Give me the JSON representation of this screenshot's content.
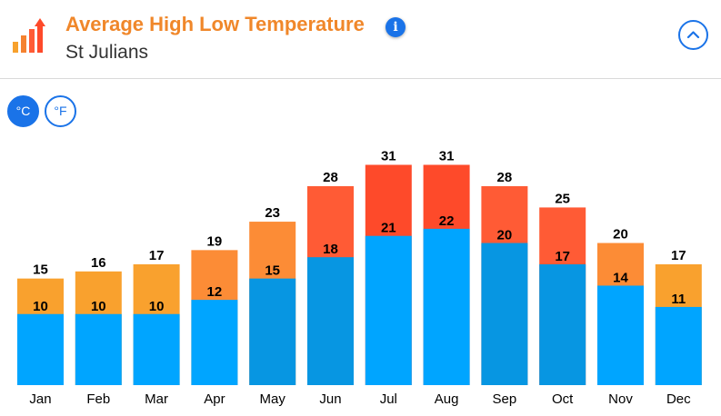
{
  "header": {
    "title": "Average High Low Temperature",
    "subtitle": "St Julians",
    "info_icon": "i"
  },
  "units": {
    "celsius_label": "°C",
    "fahrenheit_label": "°F",
    "selected": "celsius"
  },
  "colors": {
    "high_mild": "#f9a12e",
    "high_warm": "#fc8c36",
    "high_hot": "#ff5b35",
    "high_hottest": "#fe4a2a",
    "low_light": "#00a5ff",
    "low_dark": "#0796e2",
    "accent": "#1a73e8"
  },
  "chart_data": {
    "type": "bar",
    "categories": [
      "Jan",
      "Feb",
      "Mar",
      "Apr",
      "May",
      "Jun",
      "Jul",
      "Aug",
      "Sep",
      "Oct",
      "Nov",
      "Dec"
    ],
    "series": [
      {
        "values": [
          15,
          16,
          17,
          19,
          23,
          28,
          31,
          31,
          28,
          25,
          20,
          17
        ]
      },
      {
        "values": [
          10,
          10,
          10,
          12,
          15,
          18,
          21,
          22,
          20,
          17,
          14,
          11
        ]
      }
    ],
    "ylim": [
      0,
      34
    ],
    "grid": false,
    "legend": "none"
  }
}
